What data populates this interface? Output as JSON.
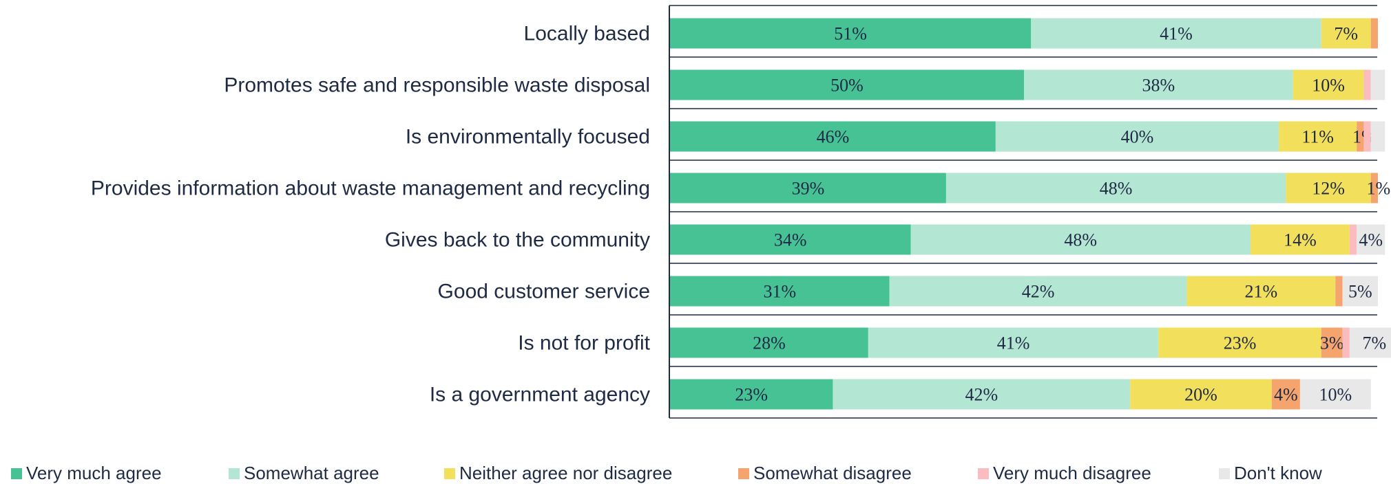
{
  "chart_data": {
    "type": "bar",
    "orientation": "horizontal",
    "stacked": true,
    "categories": [
      "Locally based",
      "Promotes safe and responsible waste disposal",
      "Is environmentally focused",
      "Provides information about waste management and recycling",
      "Gives back to the community",
      "Good customer service",
      "Is not for profit",
      "Is a government agency"
    ],
    "series": [
      {
        "name": "Very much agree",
        "color": "#47c295",
        "values": [
          51,
          50,
          46,
          39,
          34,
          31,
          28,
          23
        ],
        "labels": [
          "51%",
          "50%",
          "46%",
          "39%",
          "34%",
          "31%",
          "28%",
          "23%"
        ]
      },
      {
        "name": "Somewhat agree",
        "color": "#b3e6d3",
        "values": [
          41,
          38,
          40,
          48,
          48,
          42,
          41,
          42
        ],
        "labels": [
          "41%",
          "38%",
          "40%",
          "48%",
          "48%",
          "42%",
          "41%",
          "42%"
        ]
      },
      {
        "name": "Neither agree nor disagree",
        "color": "#f2df5c",
        "values": [
          7,
          10,
          11,
          12,
          14,
          21,
          23,
          20
        ],
        "labels": [
          "7%",
          "10%",
          "11%",
          "12%",
          "14%",
          "21%",
          "23%",
          "20%"
        ]
      },
      {
        "name": "Somewhat disagree",
        "color": "#f4a46c",
        "values": [
          1,
          0,
          1,
          1,
          0,
          1,
          3,
          4
        ],
        "labels": [
          "",
          "",
          "1%",
          "1%",
          "",
          "",
          "3%",
          "4%"
        ]
      },
      {
        "name": "Very much disagree",
        "color": "#fbbcc0",
        "values": [
          0,
          1,
          1,
          0,
          1,
          0,
          1,
          0
        ],
        "labels": [
          "",
          "",
          "",
          "",
          "",
          "",
          "",
          ""
        ]
      },
      {
        "name": "Don't know",
        "color": "#e8e8e8",
        "values": [
          0,
          2,
          2,
          0,
          4,
          5,
          7,
          10
        ],
        "labels": [
          "",
          "",
          "",
          "",
          "4%",
          "5%",
          "7%",
          "10%"
        ]
      }
    ],
    "xlim": [
      0,
      100
    ],
    "legend_position": "bottom"
  }
}
